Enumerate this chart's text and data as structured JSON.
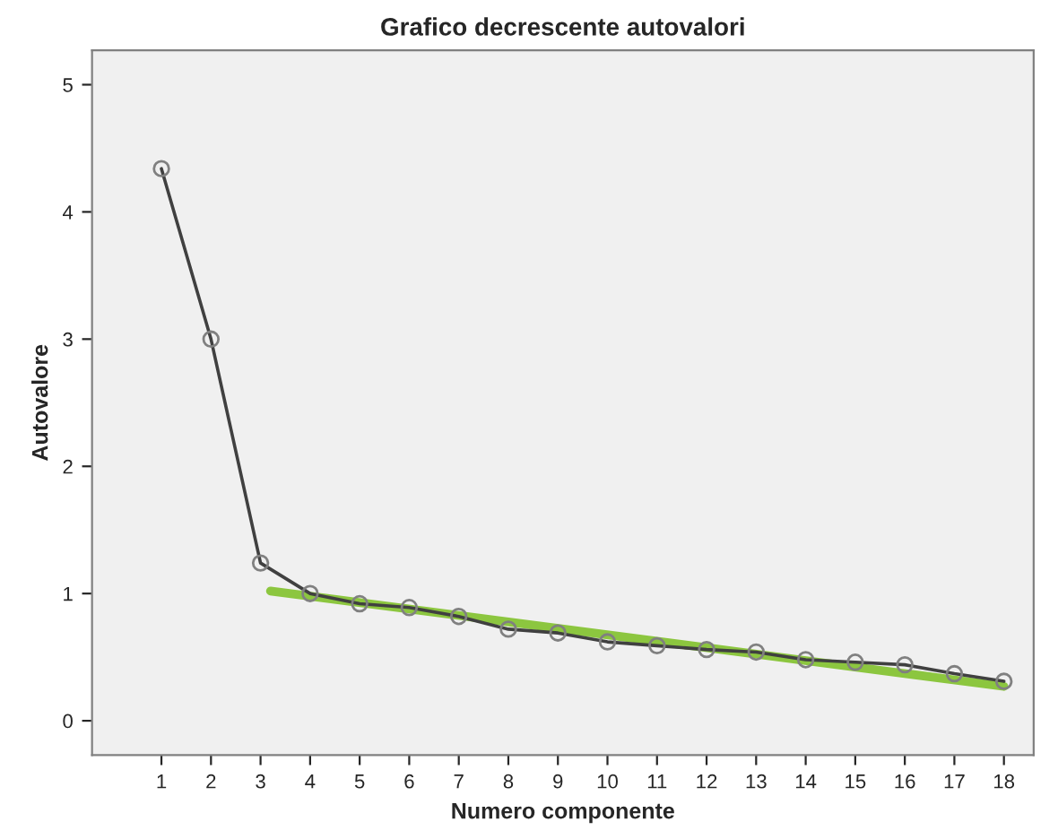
{
  "chart_data": {
    "type": "line",
    "title": "Grafico decrescente autovalori",
    "xlabel": "Numero componente",
    "ylabel": "Autovalore",
    "x": [
      1,
      2,
      3,
      4,
      5,
      6,
      7,
      8,
      9,
      10,
      11,
      12,
      13,
      14,
      15,
      16,
      17,
      18
    ],
    "series": [
      {
        "color": "#404040",
        "marker": "circle",
        "values": [
          4.34,
          3.0,
          1.24,
          1.0,
          0.92,
          0.89,
          0.82,
          0.72,
          0.69,
          0.62,
          0.59,
          0.56,
          0.54,
          0.48,
          0.46,
          0.44,
          0.37,
          0.31
        ]
      },
      {
        "type": "line",
        "color": "#8cc63f",
        "marker": "none",
        "x": [
          3.2,
          18
        ],
        "values": [
          1.02,
          0.27
        ]
      }
    ],
    "xlim": [
      -0.4,
      18.6
    ],
    "ylim": [
      -0.27,
      5.27
    ],
    "xticks": [
      1,
      2,
      3,
      4,
      5,
      6,
      7,
      8,
      9,
      10,
      11,
      12,
      13,
      14,
      15,
      16,
      17,
      18
    ],
    "yticks": [
      0,
      1,
      2,
      3,
      4,
      5
    ],
    "grid": false,
    "legend": false
  }
}
